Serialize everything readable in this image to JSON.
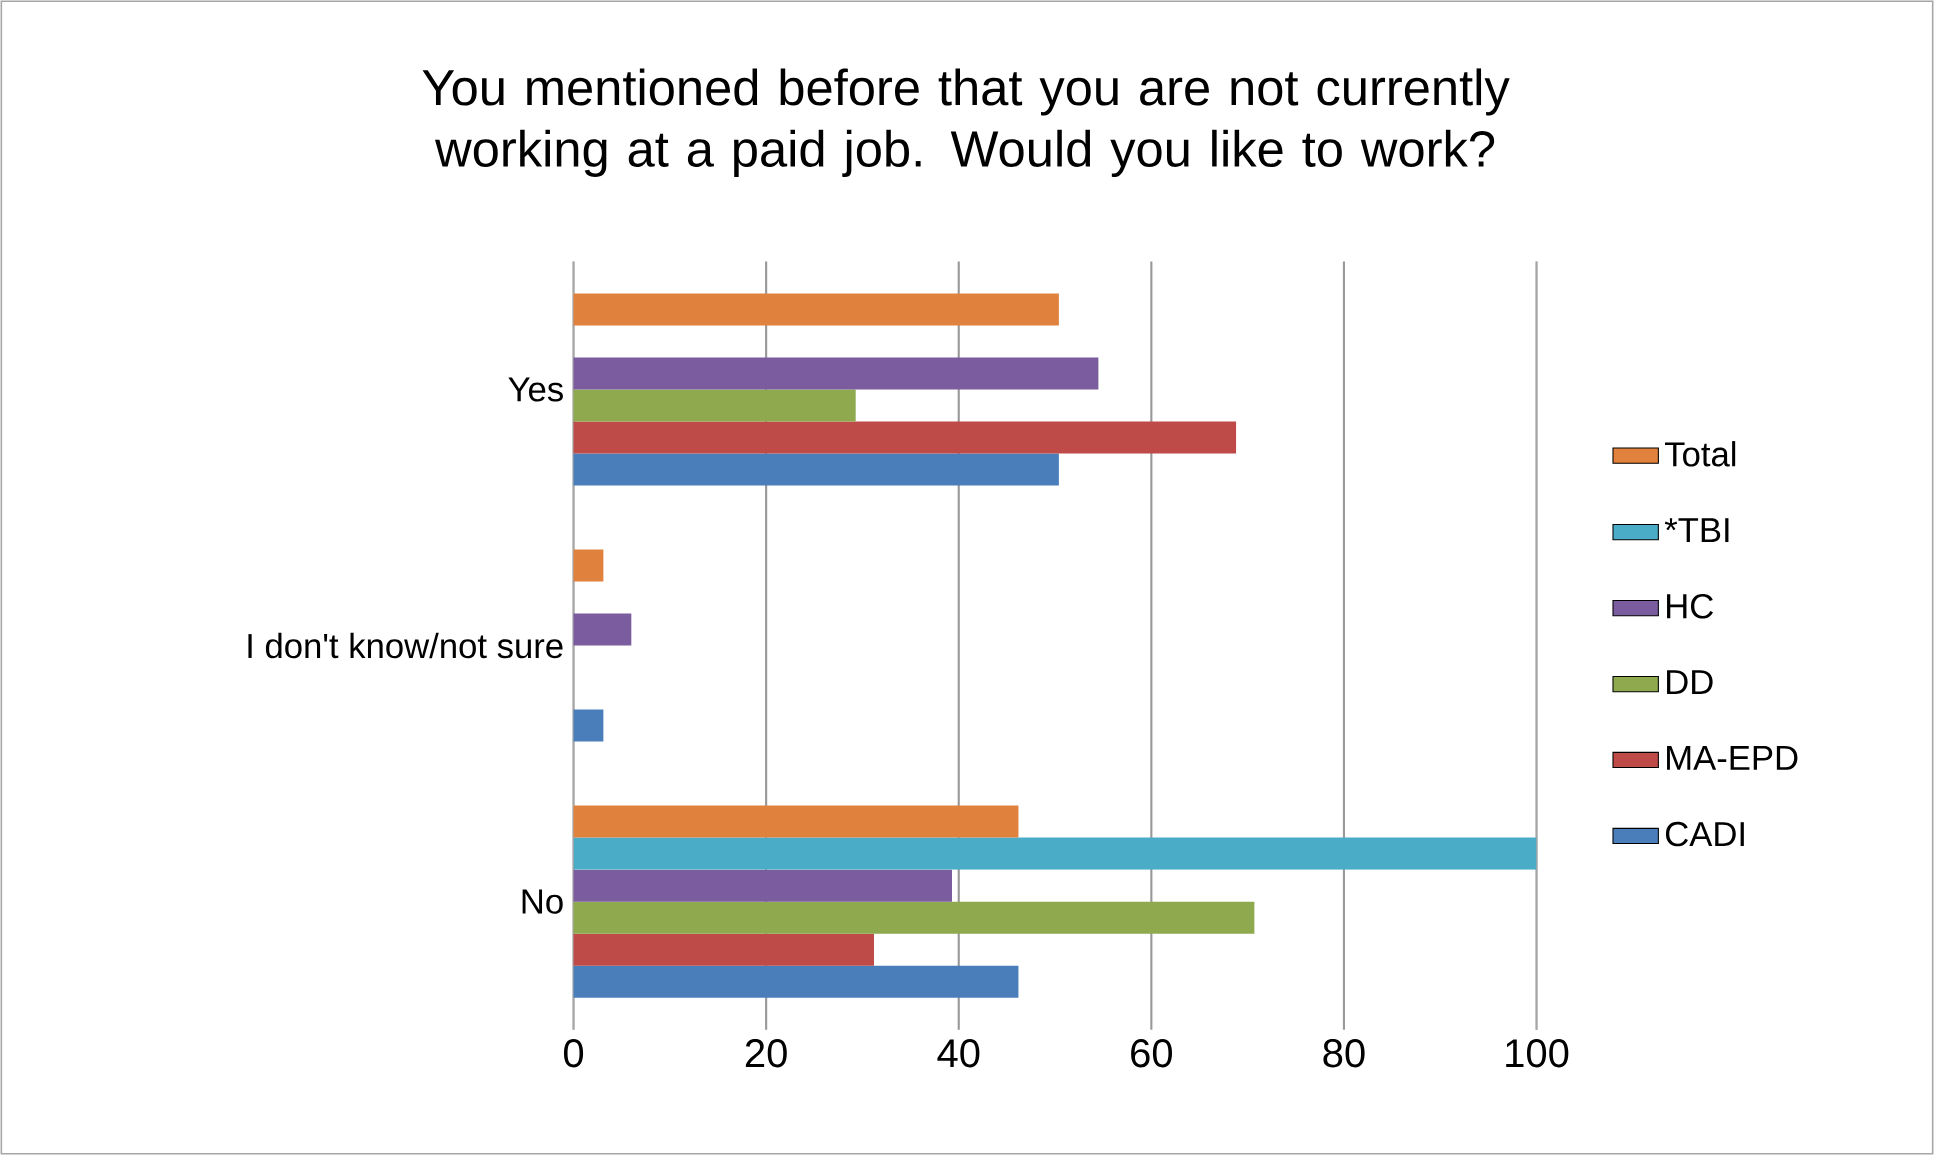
{
  "chart_data": {
    "type": "bar",
    "orientation": "horizontal",
    "title": "You mentioned before that you are not currently working at a paid job. Would you like to work?",
    "categories": [
      "Yes",
      "I don't know/not sure",
      "No"
    ],
    "series": [
      {
        "name": "CADI",
        "color": "#4a7ebb",
        "values": [
          50.4,
          3.1,
          46.2
        ]
      },
      {
        "name": "MA-EPD",
        "color": "#be4b48",
        "values": [
          68.8,
          0,
          31.2
        ]
      },
      {
        "name": "DD",
        "color": "#8faa4e",
        "values": [
          29.3,
          0,
          70.7
        ]
      },
      {
        "name": "HC",
        "color": "#7b5c9e",
        "values": [
          54.5,
          6.0,
          39.3
        ]
      },
      {
        "name": "*TBI",
        "color": "#4aacc6",
        "values": [
          0,
          0,
          100
        ]
      },
      {
        "name": "Total",
        "color": "#e0823d",
        "values": [
          50.4,
          3.1,
          46.2
        ]
      }
    ],
    "xlim": [
      0,
      100
    ],
    "xticks": [
      0,
      20,
      40,
      60,
      80,
      100
    ],
    "grid": "x",
    "legend": "right"
  }
}
